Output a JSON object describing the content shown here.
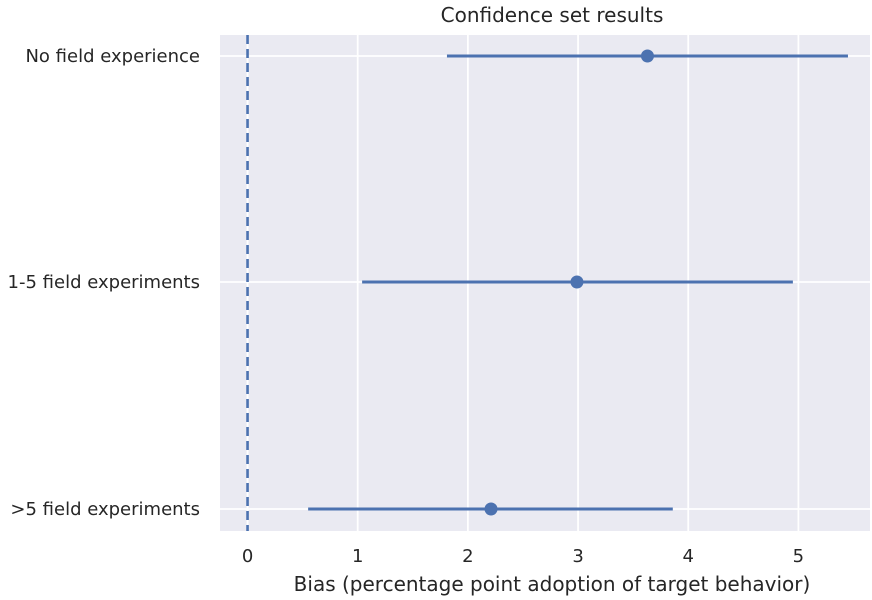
{
  "chart_data": {
    "type": "errorbar",
    "title": "Confidence set results",
    "xlabel": "Bias (percentage point adoption of target behavior)",
    "ylabel": "",
    "xlim": [
      -0.25,
      5.65
    ],
    "xticks": [
      0,
      1,
      2,
      3,
      4,
      5
    ],
    "grid": true,
    "reference_line": {
      "x": 0,
      "style": "dashed"
    },
    "categories": [
      "No field experience",
      "1-5 field experiments",
      ">5 field experiments"
    ],
    "points": [
      {
        "label": "No field experience",
        "estimate": 3.63,
        "low": 1.81,
        "high": 5.45
      },
      {
        "label": "1-5 field experiments",
        "estimate": 2.99,
        "low": 1.04,
        "high": 4.95
      },
      {
        "label": ">5 field experiments",
        "estimate": 2.21,
        "low": 0.55,
        "high": 3.86
      }
    ],
    "colors": {
      "series": "#4c72b0",
      "background": "#eaeaf2",
      "grid": "#ffffff",
      "text": "#262626"
    }
  }
}
